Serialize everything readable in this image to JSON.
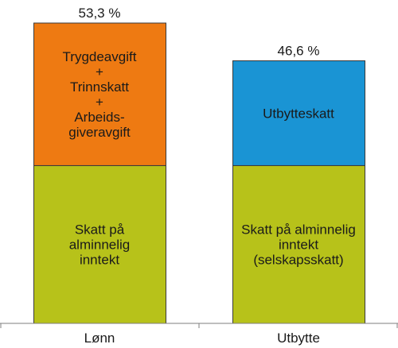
{
  "chart_data": {
    "type": "bar",
    "stacked": true,
    "categories": [
      "Lønn",
      "Utbytte"
    ],
    "ylim": [
      0,
      53.3
    ],
    "grid": false,
    "legend": "none",
    "totals": [
      "53,3 %",
      "46,6 %"
    ],
    "stacks": [
      {
        "category": "Lønn",
        "segments": [
          {
            "value": 28.0,
            "color": "#B7C21A",
            "label_lines": [
              "Skatt på",
              "alminnelig",
              "inntekt"
            ]
          },
          {
            "value": 25.3,
            "color": "#EE7A12",
            "label_lines": [
              "Trygdeavgift",
              "+",
              "Trinnskatt",
              "+",
              "Arbeids-",
              "giveravgift"
            ]
          }
        ]
      },
      {
        "category": "Utbytte",
        "segments": [
          {
            "value": 28.0,
            "color": "#B7C21A",
            "label_lines": [
              "Skatt på alminnelig",
              "inntekt",
              "(selskapsskatt)"
            ]
          },
          {
            "value": 18.6,
            "color": "#1A94D4",
            "label_lines": [
              "Utbytteskatt"
            ]
          }
        ]
      }
    ],
    "colors": {
      "bar_outline": "#3a3a3a",
      "axis": "#7f7f7f"
    }
  }
}
